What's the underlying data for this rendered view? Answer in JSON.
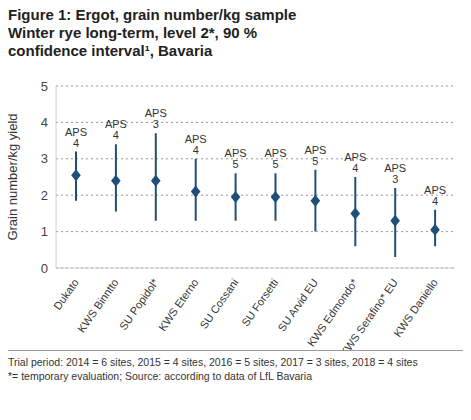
{
  "chart_data": {
    "type": "scatter",
    "title": "Figure 1: Ergot, grain number/kg sample Winter rye long-term, level 2*, 90 % confidence interval¹, Bavaria",
    "y_label": "Grain number/kg yield",
    "categories": [
      "Dukato",
      "KWS Binntto",
      "SU Popidol*",
      "KWS Eterno",
      "SU Cossani",
      "SU Forsetti",
      "SU Arvid EU",
      "KWS Edmondo*",
      "KWS Serafino* EU",
      "KWS Daniello"
    ],
    "values": [
      2.55,
      2.4,
      2.4,
      2.1,
      1.95,
      1.95,
      1.85,
      1.5,
      1.3,
      1.05
    ],
    "ci_low": [
      1.85,
      1.55,
      1.3,
      1.3,
      1.3,
      1.3,
      1.0,
      0.6,
      0.3,
      0.6
    ],
    "ci_high": [
      3.2,
      3.4,
      3.7,
      3.0,
      2.6,
      2.6,
      2.7,
      2.5,
      2.2,
      1.6
    ],
    "annotations": [
      "APS 4",
      "APS 4",
      "APS 3",
      "APS 4",
      "APS 5",
      "APS 5",
      "APS 5",
      "APS 4",
      "APS 3",
      "APS 4"
    ],
    "color": "#1f4e79",
    "marker": "diamond",
    "ylim": [
      0,
      5
    ],
    "yticks": [
      0,
      1,
      2,
      3,
      4,
      5
    ],
    "grid": true,
    "footnotes": [
      "Trial period: 2014 = 6 sites, 2015 = 4 sites, 2016 = 5 sites, 2017 = 3 sites, 2018 = 4 sites",
      "*= temporary evaluation; Source: according to data of LfL Bavaria"
    ]
  }
}
